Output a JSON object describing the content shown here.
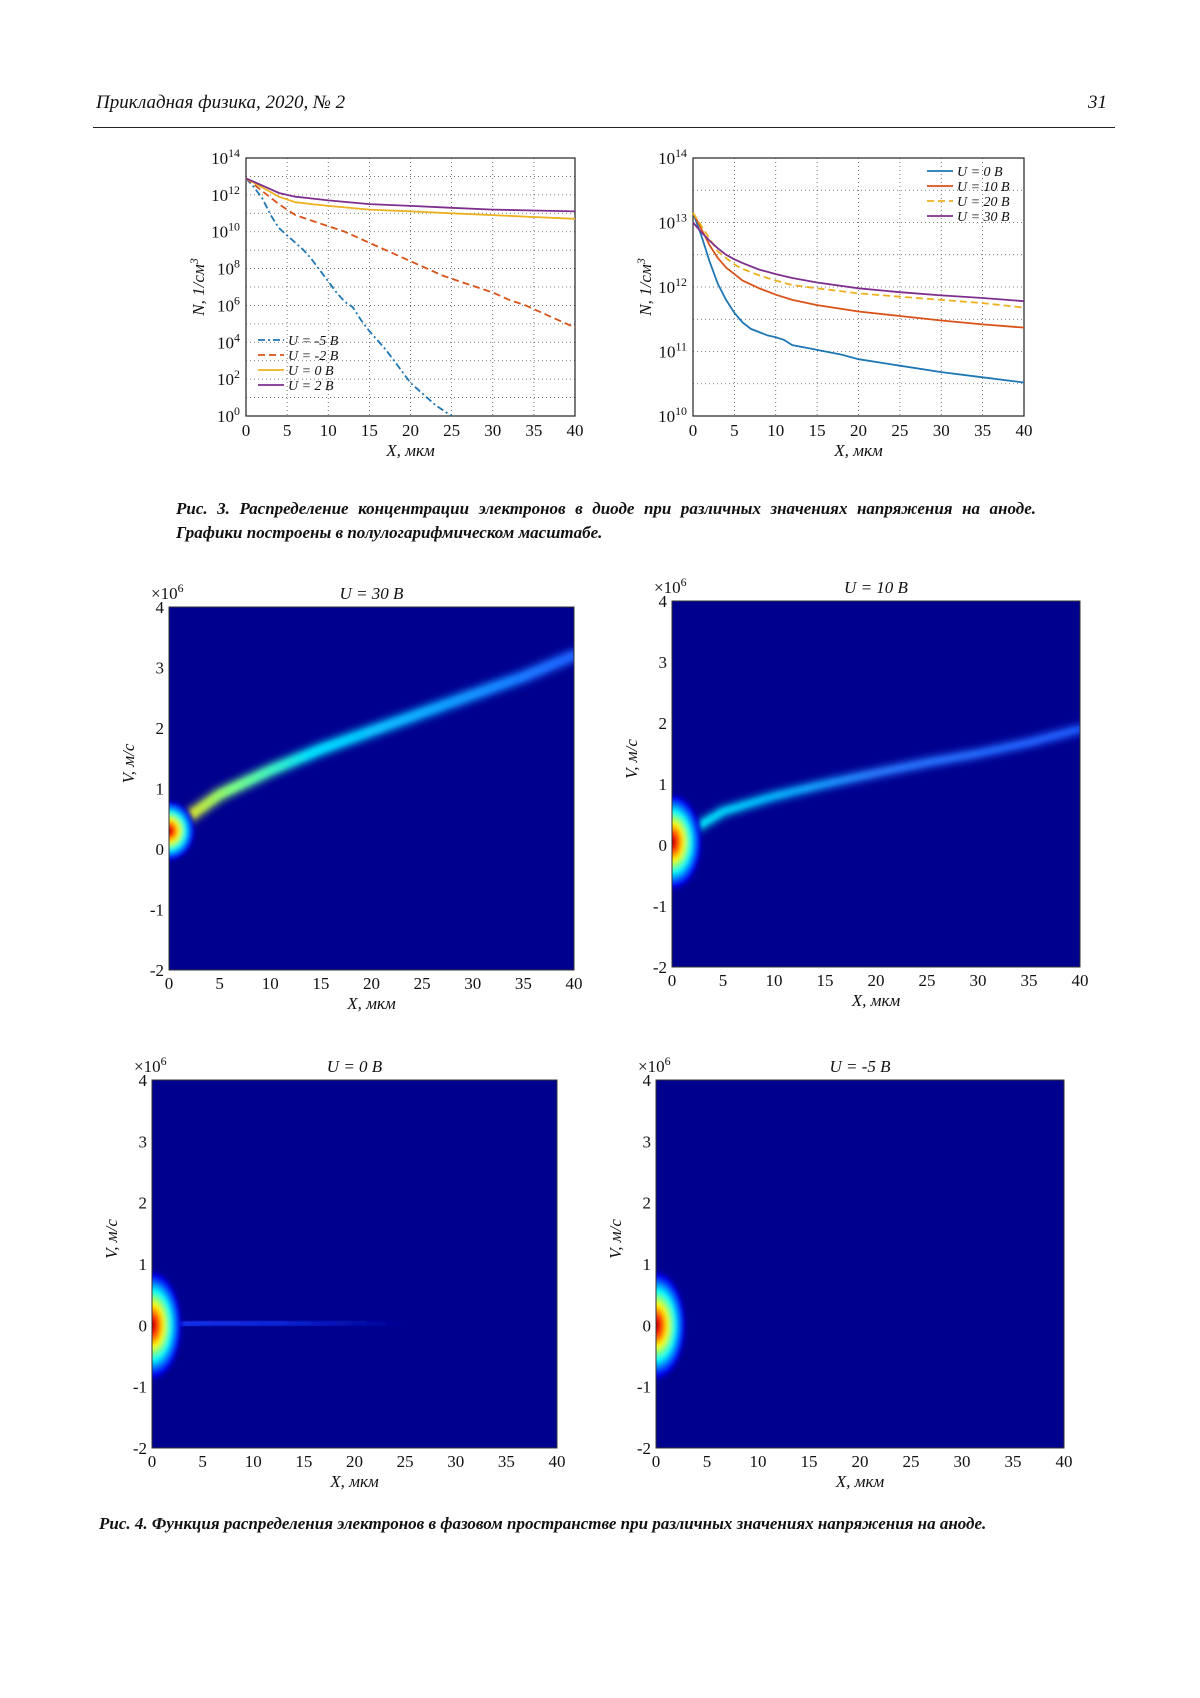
{
  "header": {
    "journal": "Прикладная физика, 2020, № 2",
    "page_number": "31"
  },
  "figure3": {
    "caption": "Рис. 3. Распределение концентрации электронов в диоде при различных значениях напряже­ния на аноде. Графики построены в полулогарифмическом масштабе."
  },
  "figure4": {
    "caption": "Рис. 4. Функция распределения электронов в фазовом пространстве при различных значениях напряжения на аноде."
  },
  "colors": {
    "blue": "#1f77b4",
    "orange": "#d95319",
    "yellow": "#edb120",
    "purple": "#7e2f8e",
    "heatmap_bg": "#00008f"
  },
  "chart_data": [
    {
      "type": "line",
      "xlabel": "X, мкм",
      "ylabel": "N, 1/см",
      "ylabel_sup": "3",
      "x_ticks": [
        "0",
        "5",
        "10",
        "15",
        "20",
        "25",
        "30",
        "35",
        "40"
      ],
      "y_ticks": [
        {
          "base": "10",
          "exp": "0"
        },
        {
          "base": "10",
          "exp": "2"
        },
        {
          "base": "10",
          "exp": "4"
        },
        {
          "base": "10",
          "exp": "6"
        },
        {
          "base": "10",
          "exp": "8"
        },
        {
          "base": "10",
          "exp": "10"
        },
        {
          "base": "10",
          "exp": "12"
        },
        {
          "base": "10",
          "exp": "14"
        }
      ],
      "xlim": [
        0,
        40
      ],
      "ylim_log10": [
        0,
        14
      ],
      "yscale": "log",
      "grid": true,
      "legend_position": "bottom-left",
      "series": [
        {
          "name": "U = -5 В",
          "color": "#1f77b4",
          "dash": "dashdot",
          "x": [
            0,
            1,
            2,
            3,
            4,
            5,
            6,
            7,
            8,
            9,
            10,
            11,
            12,
            13,
            14,
            15,
            16,
            17,
            18,
            19,
            20,
            21,
            22,
            23,
            24,
            25
          ],
          "y": [
            12.9,
            12.4,
            11.8,
            10.9,
            10.2,
            9.8,
            9.4,
            9.0,
            8.5,
            7.9,
            7.3,
            6.7,
            6.2,
            5.9,
            5.2,
            4.6,
            4.1,
            3.6,
            3.0,
            2.4,
            1.8,
            1.4,
            1.0,
            0.6,
            0.3,
            0.0
          ]
        },
        {
          "name": "U = -2 В",
          "color": "#d95319",
          "dash": "dashed",
          "x": [
            0,
            2,
            4,
            6,
            8,
            10,
            12,
            14,
            16,
            18,
            20,
            22,
            24,
            26,
            28,
            30,
            32,
            34,
            36,
            38,
            40
          ],
          "y": [
            12.9,
            12.2,
            11.5,
            10.9,
            10.6,
            10.3,
            10.0,
            9.6,
            9.2,
            8.8,
            8.4,
            8.0,
            7.6,
            7.3,
            7.0,
            6.7,
            6.3,
            6.0,
            5.6,
            5.2,
            4.8
          ]
        },
        {
          "name": "U = 0 В",
          "color": "#edb120",
          "dash": "solid",
          "x": [
            0,
            2,
            4,
            6,
            8,
            10,
            15,
            20,
            25,
            30,
            35,
            40
          ],
          "y": [
            12.9,
            12.4,
            11.9,
            11.6,
            11.5,
            11.4,
            11.2,
            11.1,
            11.0,
            10.9,
            10.8,
            10.7
          ]
        },
        {
          "name": "U = 2 В",
          "color": "#7e2f8e",
          "dash": "solid",
          "x": [
            0,
            2,
            4,
            6,
            8,
            10,
            15,
            20,
            25,
            30,
            35,
            40
          ],
          "y": [
            12.9,
            12.5,
            12.1,
            11.9,
            11.8,
            11.7,
            11.5,
            11.4,
            11.3,
            11.2,
            11.15,
            11.1
          ]
        }
      ]
    },
    {
      "type": "line",
      "xlabel": "X, мкм",
      "ylabel": "N, 1/см",
      "ylabel_sup": "3",
      "x_ticks": [
        "0",
        "5",
        "10",
        "15",
        "20",
        "25",
        "30",
        "35",
        "40"
      ],
      "y_ticks": [
        {
          "base": "10",
          "exp": "10"
        },
        {
          "base": "10",
          "exp": "11"
        },
        {
          "base": "10",
          "exp": "12"
        },
        {
          "base": "10",
          "exp": "13"
        },
        {
          "base": "10",
          "exp": "14"
        }
      ],
      "xlim": [
        0,
        40
      ],
      "ylim_log10": [
        10,
        14
      ],
      "yscale": "log",
      "grid": true,
      "legend_position": "top-right",
      "series": [
        {
          "name": "U = 0 В",
          "color": "#1f77b4",
          "dash": "solid",
          "x": [
            0,
            1,
            2,
            3,
            4,
            5,
            6,
            7,
            8,
            9,
            10,
            11,
            12,
            14,
            16,
            18,
            20,
            25,
            30,
            35,
            40
          ],
          "y": [
            13.15,
            12.8,
            12.4,
            12.05,
            11.8,
            11.6,
            11.45,
            11.35,
            11.3,
            11.25,
            11.22,
            11.18,
            11.1,
            11.05,
            11.0,
            10.95,
            10.88,
            10.78,
            10.68,
            10.6,
            10.52
          ]
        },
        {
          "name": "U = 10 В",
          "color": "#d95319",
          "dash": "solid",
          "x": [
            0,
            1,
            2,
            3,
            4,
            5,
            6,
            8,
            10,
            12,
            15,
            20,
            25,
            30,
            35,
            40
          ],
          "y": [
            13.15,
            12.9,
            12.65,
            12.45,
            12.3,
            12.2,
            12.1,
            11.98,
            11.88,
            11.8,
            11.72,
            11.62,
            11.55,
            11.48,
            11.42,
            11.37
          ]
        },
        {
          "name": "U = 20 В",
          "color": "#edb120",
          "dash": "dashed",
          "x": [
            0,
            1,
            2,
            3,
            4,
            5,
            6,
            8,
            10,
            12,
            15,
            20,
            25,
            30,
            35,
            40
          ],
          "y": [
            13.15,
            12.95,
            12.75,
            12.55,
            12.45,
            12.35,
            12.28,
            12.18,
            12.1,
            12.03,
            11.98,
            11.9,
            11.85,
            11.8,
            11.75,
            11.68
          ]
        },
        {
          "name": "U = 30 В",
          "color": "#7e2f8e",
          "dash": "solid",
          "x": [
            0,
            1,
            2,
            3,
            4,
            5,
            6,
            8,
            10,
            12,
            15,
            20,
            25,
            30,
            35,
            40
          ],
          "y": [
            13.0,
            12.85,
            12.72,
            12.6,
            12.5,
            12.43,
            12.37,
            12.27,
            12.2,
            12.14,
            12.07,
            11.98,
            11.92,
            11.87,
            11.83,
            11.78
          ]
        }
      ]
    },
    {
      "type": "heatmap",
      "title": "U = 30 В",
      "xlabel": "X, мкм",
      "ylabel": "V, м/с",
      "scale_base": "×10",
      "scale_exp": "6",
      "x_ticks": [
        "0",
        "5",
        "10",
        "15",
        "20",
        "25",
        "30",
        "35",
        "40"
      ],
      "y_ticks": [
        "4",
        "3",
        "2",
        "1",
        "0",
        "-1",
        "-2"
      ],
      "xlim": [
        0,
        40
      ],
      "ylim": [
        -2,
        4
      ],
      "ridge": {
        "x": [
          0,
          5,
          10,
          15,
          20,
          25,
          30,
          35,
          40
        ],
        "v": [
          0.3,
          0.9,
          1.3,
          1.65,
          1.95,
          2.25,
          2.55,
          2.85,
          3.2
        ],
        "spread_at_x0": 0.5
      }
    },
    {
      "type": "heatmap",
      "title": "U = 10 В",
      "xlabel": "X, мкм",
      "ylabel": "V, м/с",
      "scale_base": "×10",
      "scale_exp": "6",
      "x_ticks": [
        "0",
        "5",
        "10",
        "15",
        "20",
        "25",
        "30",
        "35",
        "40"
      ],
      "y_ticks": [
        "4",
        "3",
        "2",
        "1",
        "0",
        "-1",
        "-2"
      ],
      "xlim": [
        0,
        40
      ],
      "ylim": [
        -2,
        4
      ],
      "ridge": {
        "x": [
          0,
          5,
          10,
          15,
          20,
          25,
          30,
          35,
          40
        ],
        "v": [
          0.05,
          0.55,
          0.8,
          1.0,
          1.18,
          1.35,
          1.5,
          1.68,
          1.9
        ],
        "spread_at_x0": 0.8
      }
    },
    {
      "type": "heatmap",
      "title": "U = 0 В",
      "xlabel": "X, мкм",
      "ylabel": "V, м/с",
      "scale_base": "×10",
      "scale_exp": "6",
      "x_ticks": [
        "0",
        "5",
        "10",
        "15",
        "20",
        "25",
        "30",
        "35",
        "40"
      ],
      "y_ticks": [
        "4",
        "3",
        "2",
        "1",
        "0",
        "-1",
        "-2"
      ],
      "xlim": [
        0,
        40
      ],
      "ylim": [
        -2,
        4
      ],
      "ridge": {
        "x": [
          0,
          5,
          10,
          15,
          20,
          25
        ],
        "v": [
          0.0,
          0.05,
          0.05,
          0.05,
          0.05,
          0.05
        ],
        "spread_at_x0": 0.9
      }
    },
    {
      "type": "heatmap",
      "title": "U = -5 В",
      "xlabel": "X, мкм",
      "ylabel": "V, м/с",
      "scale_base": "×10",
      "scale_exp": "6",
      "x_ticks": [
        "0",
        "5",
        "10",
        "15",
        "20",
        "25",
        "30",
        "35",
        "40"
      ],
      "y_ticks": [
        "4",
        "3",
        "2",
        "1",
        "0",
        "-1",
        "-2"
      ],
      "xlim": [
        0,
        40
      ],
      "ylim": [
        -2,
        4
      ],
      "ridge": {
        "x": [
          0,
          1,
          2,
          3
        ],
        "v": [
          0.0,
          0.0,
          0.0,
          0.0
        ],
        "spread_at_x0": 0.9
      }
    }
  ]
}
